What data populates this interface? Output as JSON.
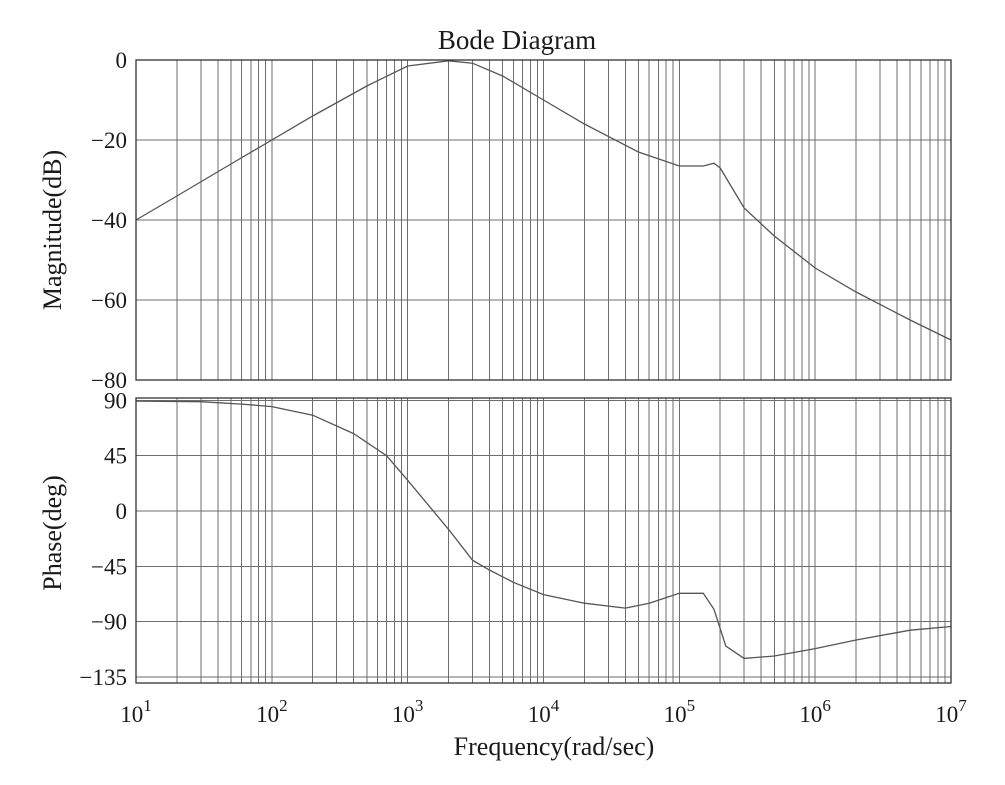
{
  "chart_data": {
    "type": "line",
    "title": "Bode Diagram",
    "xlabel": "Frequency(rad/sec)",
    "x_scale": "log",
    "xlim": [
      10,
      10000000
    ],
    "x_ticks": [
      {
        "base": "10",
        "exp": "1"
      },
      {
        "base": "10",
        "exp": "2"
      },
      {
        "base": "10",
        "exp": "3"
      },
      {
        "base": "10",
        "exp": "4"
      },
      {
        "base": "10",
        "exp": "5"
      },
      {
        "base": "10",
        "exp": "6"
      },
      {
        "base": "10",
        "exp": "7"
      }
    ],
    "grid": true,
    "colors": {
      "curve": "#555555",
      "grid": "#6e6e6e",
      "frame": "#333333"
    },
    "panels": [
      {
        "name": "magnitude",
        "ylabel": "Magnitude(dB)",
        "ylim": [
          -80,
          0
        ],
        "y_ticks": [
          "0",
          "−20",
          "−40",
          "−60",
          "−80"
        ],
        "y_tick_values": [
          0,
          -20,
          -40,
          -60,
          -80
        ],
        "x": [
          10,
          20,
          50,
          100,
          200,
          500,
          1000,
          2000,
          3000,
          5000,
          10000,
          20000,
          50000,
          100000,
          150000,
          180000,
          200000,
          300000,
          500000,
          1000000,
          2000000,
          5000000,
          10000000
        ],
        "y": [
          -40,
          -34,
          -26,
          -20,
          -14,
          -6.5,
          -1.5,
          -0.2,
          -0.8,
          -4,
          -10,
          -16,
          -23,
          -26.5,
          -26.5,
          -25.8,
          -27,
          -37,
          -44,
          -52,
          -58,
          -65,
          -70
        ]
      },
      {
        "name": "phase",
        "ylabel": "Phase(deg)",
        "ylim": [
          -140,
          92
        ],
        "y_ticks": [
          "90",
          "45",
          "0",
          "−45",
          "−90",
          "−135"
        ],
        "y_tick_values": [
          90,
          45,
          0,
          -45,
          -90,
          -135
        ],
        "x": [
          10,
          30,
          60,
          100,
          200,
          400,
          700,
          1000,
          2000,
          3000,
          4000,
          6000,
          10000,
          20000,
          40000,
          60000,
          100000,
          150000,
          180000,
          220000,
          300000,
          500000,
          1000000,
          2000000,
          5000000,
          10000000
        ],
        "y": [
          89.5,
          89,
          87,
          85,
          78,
          63,
          45,
          25,
          -15,
          -40,
          -48,
          -58,
          -68,
          -75,
          -79,
          -75,
          -67,
          -67,
          -80,
          -110,
          -120,
          -118,
          -112,
          -105,
          -97,
          -94
        ]
      }
    ]
  }
}
